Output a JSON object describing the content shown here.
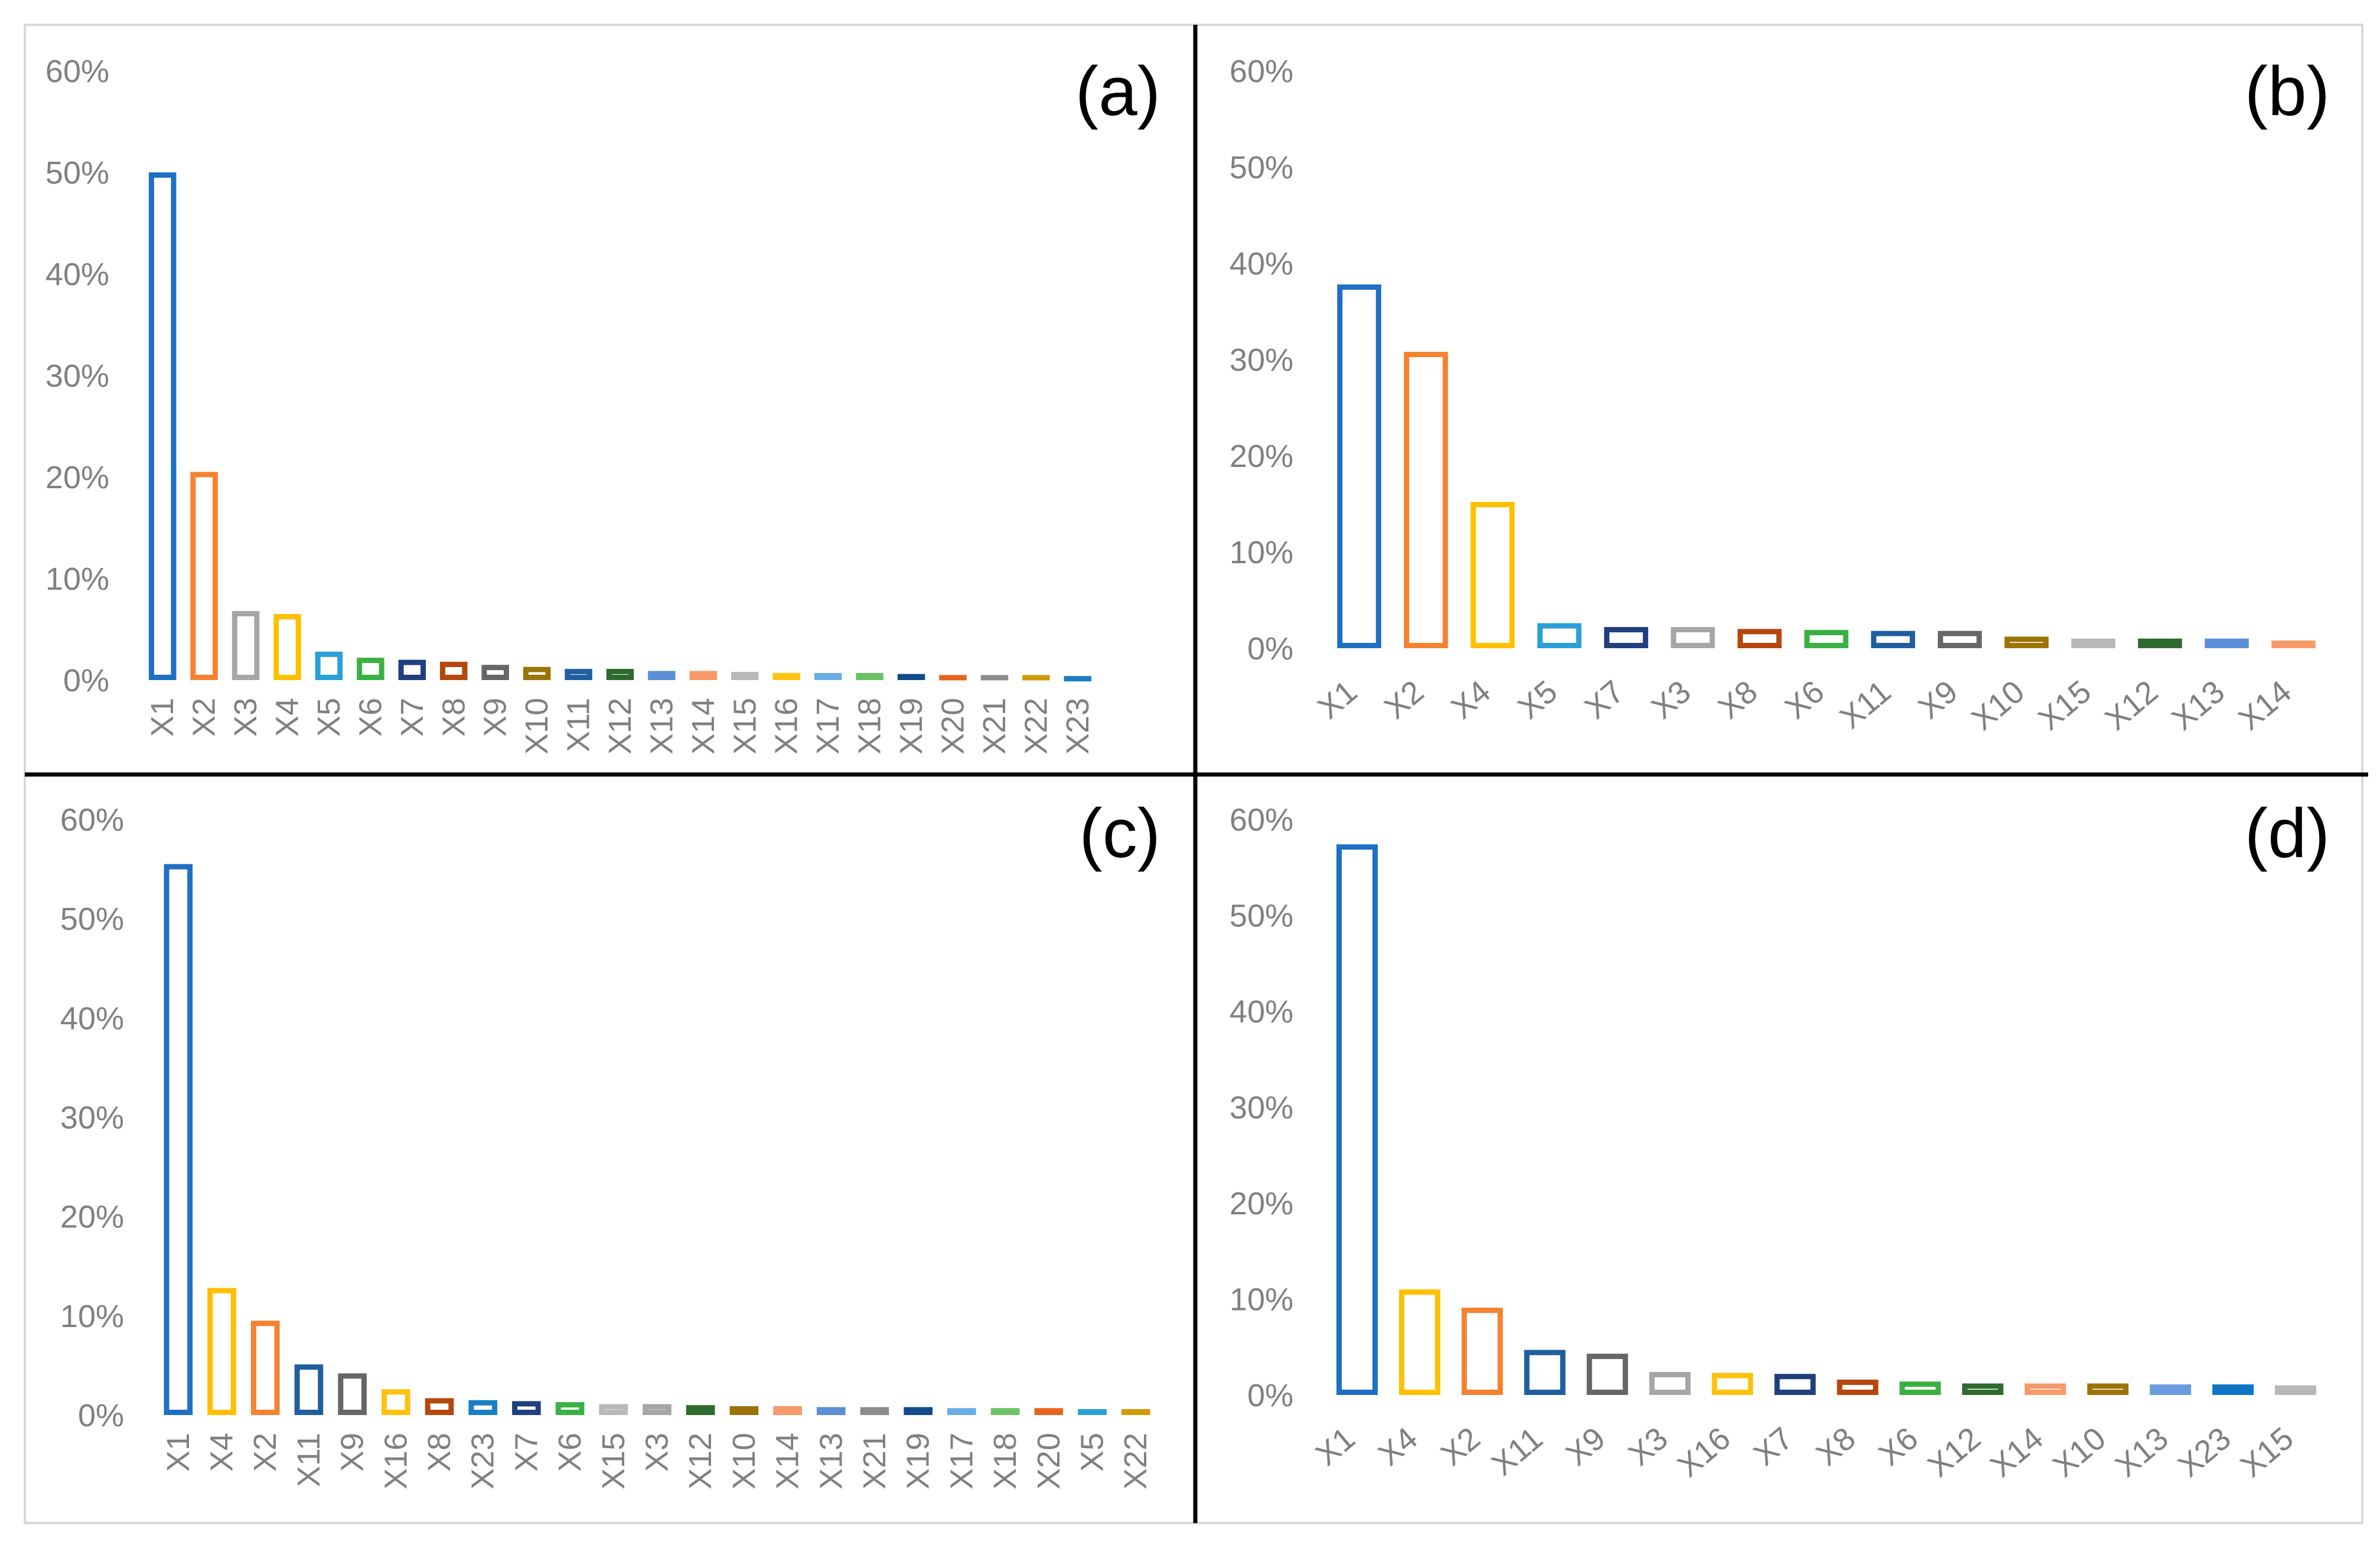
{
  "figure": {
    "title": ""
  },
  "chart_data": [
    {
      "panel": "a",
      "label": "(a)",
      "type": "bar",
      "ylim": [
        0,
        60
      ],
      "yticks": [
        "0%",
        "10%",
        "20%",
        "30%",
        "40%",
        "50%",
        "60%"
      ],
      "categories": [
        "X1",
        "X2",
        "X3",
        "X4",
        "X5",
        "X6",
        "X7",
        "X8",
        "X9",
        "X10",
        "X11",
        "X12",
        "X13",
        "X14",
        "X15",
        "X16",
        "X17",
        "X18",
        "X19",
        "X20",
        "X21",
        "X22",
        "X23"
      ],
      "values": [
        50.0,
        20.5,
        6.8,
        6.5,
        2.8,
        2.2,
        2.0,
        1.8,
        1.5,
        1.3,
        1.1,
        1.1,
        0.9,
        0.9,
        0.8,
        0.7,
        0.7,
        0.7,
        0.6,
        0.5,
        0.5,
        0.5,
        0.4
      ],
      "colors": [
        "#1f6fc4",
        "#f58231",
        "#a6a6a6",
        "#ffc000",
        "#2a9fd8",
        "#3cb043",
        "#1f3f7f",
        "#b5480e",
        "#666666",
        "#9b7308",
        "#1f5f9f",
        "#2d6a2d",
        "#5b8fd6",
        "#f7996a",
        "#b8b8b8",
        "#ffc20e",
        "#6aaee6",
        "#6cc266",
        "#124a8c",
        "#e8641e",
        "#8c8c8c",
        "#d19a0a",
        "#1a7fc4"
      ],
      "xlabel": "",
      "ylabel": "",
      "grid": false
    },
    {
      "panel": "b",
      "label": "(b)",
      "type": "bar",
      "ylim": [
        0,
        60
      ],
      "yticks": [
        "0%",
        "10%",
        "20%",
        "30%",
        "40%",
        "50%",
        "60%"
      ],
      "categories": [
        "X1",
        "X2",
        "X4",
        "X5",
        "X7",
        "X3",
        "X8",
        "X6",
        "X11",
        "X9",
        "X10",
        "X15",
        "X12",
        "X13",
        "X14"
      ],
      "values": [
        37.8,
        30.8,
        15.2,
        2.6,
        2.2,
        2.2,
        2.0,
        1.9,
        1.8,
        1.8,
        1.2,
        1.0,
        1.0,
        1.0,
        0.8
      ],
      "colors": [
        "#1f6fc4",
        "#f58231",
        "#ffc000",
        "#2a9fd8",
        "#1f3f7f",
        "#a6a6a6",
        "#b5480e",
        "#3cb043",
        "#1f5f9f",
        "#666666",
        "#9b7308",
        "#b8b8b8",
        "#2d6a2d",
        "#5b8fd6",
        "#f7996a"
      ],
      "xlabel": "",
      "ylabel": "",
      "grid": false
    },
    {
      "panel": "c",
      "label": "(c)",
      "type": "bar",
      "ylim": [
        0,
        60
      ],
      "yticks": [
        "0%",
        "10%",
        "20%",
        "30%",
        "40%",
        "50%",
        "60%"
      ],
      "categories": [
        "X1",
        "X4",
        "X2",
        "X11",
        "X9",
        "X16",
        "X8",
        "X23",
        "X7",
        "X6",
        "X15",
        "X3",
        "X12",
        "X10",
        "X14",
        "X13",
        "X21",
        "X19",
        "X17",
        "X18",
        "X20",
        "X5",
        "X22"
      ],
      "values": [
        55.5,
        12.8,
        9.5,
        5.1,
        4.2,
        2.6,
        1.7,
        1.5,
        1.4,
        1.3,
        1.1,
        1.1,
        1.0,
        0.9,
        0.9,
        0.8,
        0.8,
        0.8,
        0.7,
        0.7,
        0.7,
        0.6,
        0.6
      ],
      "colors": [
        "#1f6fc4",
        "#ffc000",
        "#f58231",
        "#1f5f9f",
        "#666666",
        "#ffc20e",
        "#b5480e",
        "#1a7fc4",
        "#1f3f7f",
        "#3cb043",
        "#b8b8b8",
        "#a6a6a6",
        "#2d6a2d",
        "#9b7308",
        "#f7996a",
        "#5b8fd6",
        "#8c8c8c",
        "#124a8c",
        "#6aaee6",
        "#6cc266",
        "#e8641e",
        "#2a9fd8",
        "#d19a0a"
      ],
      "xlabel": "",
      "ylabel": "",
      "grid": false
    },
    {
      "panel": "d",
      "label": "(d)",
      "type": "bar",
      "ylim": [
        0,
        60
      ],
      "yticks": [
        "0%",
        "10%",
        "20%",
        "30%",
        "40%",
        "50%",
        "60%"
      ],
      "categories": [
        "X1",
        "X4",
        "X2",
        "X11",
        "X9",
        "X3",
        "X16",
        "X7",
        "X8",
        "X6",
        "X12",
        "X14",
        "X10",
        "X13",
        "X23",
        "X15"
      ],
      "values": [
        57.4,
        11.0,
        9.1,
        4.7,
        4.3,
        2.4,
        2.3,
        2.2,
        1.6,
        1.4,
        1.2,
        1.2,
        1.2,
        1.1,
        1.1,
        1.0
      ],
      "colors": [
        "#1f6fc4",
        "#ffc000",
        "#f58231",
        "#1f5f9f",
        "#666666",
        "#a6a6a6",
        "#ffc20e",
        "#1f3f7f",
        "#b5480e",
        "#3cb043",
        "#2d6a2d",
        "#f7996a",
        "#9b7308",
        "#6a9be0",
        "#0f74c4",
        "#b8b8b8"
      ],
      "xlabel": "",
      "ylabel": "",
      "grid": false
    }
  ]
}
